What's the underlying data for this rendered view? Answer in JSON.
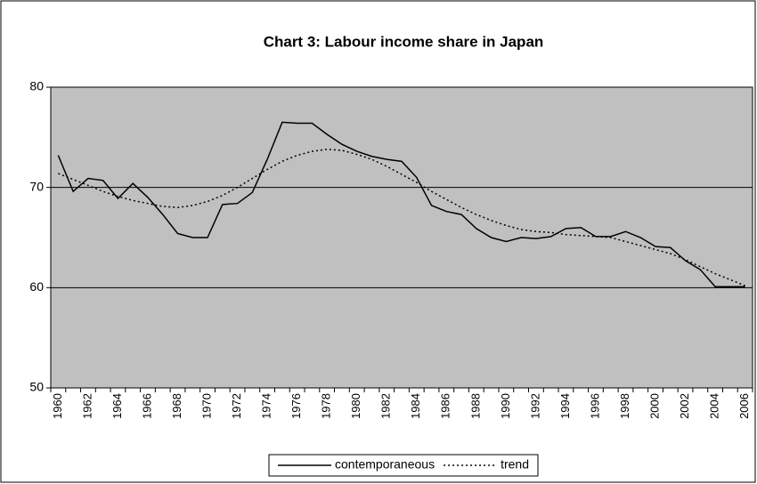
{
  "chart_data": {
    "type": "line",
    "title": "Chart 3: Labour income share in Japan",
    "categories": [
      "1960",
      null,
      "1962",
      null,
      "1964",
      null,
      "1966",
      null,
      "1968",
      null,
      "1970",
      null,
      "1972",
      null,
      "1974",
      null,
      "1976",
      null,
      "1978",
      null,
      "1980",
      null,
      "1982",
      null,
      "1984",
      null,
      "1986",
      null,
      "1988",
      null,
      "1990",
      null,
      "1992",
      null,
      "1994",
      null,
      "1996",
      null,
      "1998",
      null,
      "2000",
      null,
      "2002",
      null,
      "2004",
      null,
      "2006"
    ],
    "series": [
      {
        "name": "contemporaneous",
        "color": "#000000",
        "dash": "solid",
        "values": [
          73.2,
          69.6,
          70.9,
          70.7,
          68.9,
          70.4,
          69.0,
          67.3,
          65.4,
          65.0,
          65.0,
          68.3,
          68.4,
          69.5,
          72.8,
          76.5,
          76.4,
          76.4,
          75.3,
          74.3,
          73.6,
          73.1,
          72.8,
          72.6,
          71.0,
          68.2,
          67.6,
          67.3,
          65.9,
          65.0,
          64.6,
          65.0,
          64.9,
          65.1,
          65.9,
          66.0,
          65.1,
          65.1,
          65.6,
          65.0,
          64.1,
          64.0,
          62.7,
          61.8,
          60.1,
          60.1,
          60.1
        ]
      },
      {
        "name": "trend",
        "color": "#000000",
        "dash": "dotted",
        "values": [
          71.4,
          70.8,
          70.2,
          69.6,
          69.1,
          68.7,
          68.4,
          68.1,
          68.0,
          68.2,
          68.6,
          69.2,
          70.0,
          70.9,
          71.8,
          72.6,
          73.2,
          73.6,
          73.8,
          73.7,
          73.3,
          72.8,
          72.1,
          71.3,
          70.5,
          69.6,
          68.8,
          68.0,
          67.3,
          66.7,
          66.2,
          65.8,
          65.6,
          65.5,
          65.3,
          65.2,
          65.1,
          65.0,
          64.6,
          64.2,
          63.8,
          63.4,
          62.8,
          62.1,
          61.4,
          60.8,
          60.2
        ]
      }
    ],
    "ylim": [
      50,
      80
    ],
    "yticks": [
      50,
      60,
      70,
      80
    ],
    "grid": true,
    "plot_background": "#c0c0c0",
    "legend": "bottom"
  }
}
